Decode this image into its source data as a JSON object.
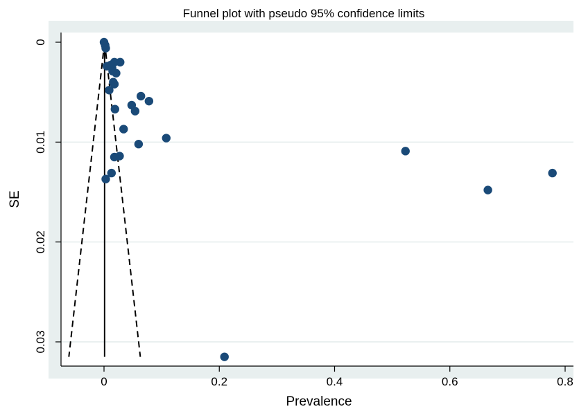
{
  "chart_data": {
    "type": "scatter",
    "title": "Funnel plot with pseudo 95% confidence limits",
    "xlabel": "Prevalence",
    "ylabel": "SE",
    "xlim": [
      -0.1,
      0.82
    ],
    "ylim": [
      0,
      0.0322
    ],
    "y_reversed": true,
    "x_ticks": [
      0,
      0.2,
      0.4,
      0.6,
      0.8
    ],
    "x_tick_labels": [
      "0",
      "0.2",
      "0.4",
      "0.6",
      "0.8"
    ],
    "y_ticks": [
      0,
      0.01,
      0.02,
      0.03
    ],
    "y_tick_labels": [
      "0",
      "0.01",
      "0.02",
      "0.03"
    ],
    "grid": "horizontal",
    "colors": {
      "plot_region": "#e8efef",
      "plot_area": "#ffffff",
      "points": "#1a4a78",
      "grid": "#e3ebeb",
      "lines": "#000000"
    },
    "reference_line": {
      "x": 0.001,
      "y_range": [
        0,
        0.0315
      ]
    },
    "confidence_limits": {
      "style": "dashed",
      "lower": [
        [
          0.001,
          0.0
        ],
        [
          -0.061,
          0.0315
        ]
      ],
      "upper": [
        [
          0.001,
          0.0
        ],
        [
          0.063,
          0.0315
        ]
      ]
    },
    "points": [
      {
        "x": 0.0,
        "y": 0.0
      },
      {
        "x": 0.002,
        "y": 0.0003
      },
      {
        "x": 0.003,
        "y": 0.0006
      },
      {
        "x": 0.028,
        "y": 0.002
      },
      {
        "x": 0.018,
        "y": 0.002
      },
      {
        "x": 0.005,
        "y": 0.0024
      },
      {
        "x": 0.011,
        "y": 0.0023
      },
      {
        "x": 0.014,
        "y": 0.0026
      },
      {
        "x": 0.021,
        "y": 0.0031
      },
      {
        "x": 0.015,
        "y": 0.0029
      },
      {
        "x": 0.016,
        "y": 0.004
      },
      {
        "x": 0.018,
        "y": 0.0042
      },
      {
        "x": 0.009,
        "y": 0.0048
      },
      {
        "x": 0.064,
        "y": 0.0054
      },
      {
        "x": 0.078,
        "y": 0.0059
      },
      {
        "x": 0.048,
        "y": 0.0063
      },
      {
        "x": 0.054,
        "y": 0.0069
      },
      {
        "x": 0.019,
        "y": 0.0067
      },
      {
        "x": 0.034,
        "y": 0.0087
      },
      {
        "x": 0.108,
        "y": 0.0096
      },
      {
        "x": 0.06,
        "y": 0.0102
      },
      {
        "x": 0.027,
        "y": 0.0114
      },
      {
        "x": 0.018,
        "y": 0.0115
      },
      {
        "x": 0.013,
        "y": 0.0131
      },
      {
        "x": 0.003,
        "y": 0.0137
      },
      {
        "x": 0.523,
        "y": 0.0109
      },
      {
        "x": 0.666,
        "y": 0.0148
      },
      {
        "x": 0.778,
        "y": 0.0131
      },
      {
        "x": 0.209,
        "y": 0.0315
      }
    ]
  }
}
